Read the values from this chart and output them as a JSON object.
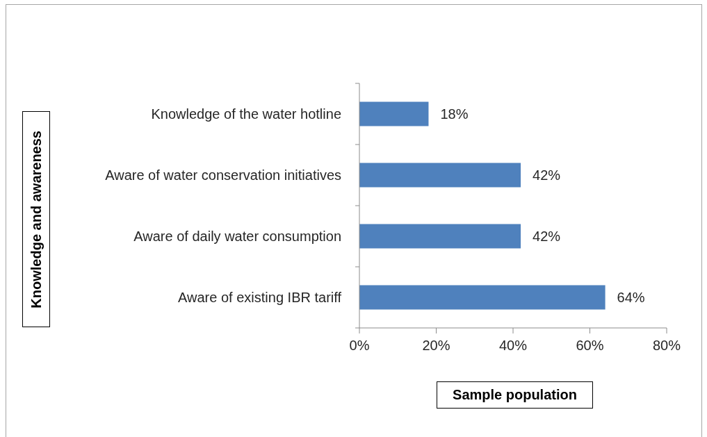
{
  "chart_data": {
    "type": "bar",
    "orientation": "horizontal",
    "categories": [
      "Knowledge of the water hotline",
      "Aware of water conservation initiatives",
      "Aware of daily water consumption",
      "Aware of existing IBR tariff"
    ],
    "values": [
      18,
      42,
      42,
      64
    ],
    "value_labels": [
      "18%",
      "42%",
      "42%",
      "64%"
    ],
    "color": "#4f81bd",
    "xlim": [
      0,
      80
    ],
    "xticks": [
      {
        "value": 0,
        "label": "0%"
      },
      {
        "value": 20,
        "label": "20%"
      },
      {
        "value": 40,
        "label": "40%"
      },
      {
        "value": 60,
        "label": "60%"
      },
      {
        "value": 80,
        "label": "80%"
      }
    ],
    "xlabel": "Sample population",
    "ylabel": "Knowledge and awareness"
  }
}
